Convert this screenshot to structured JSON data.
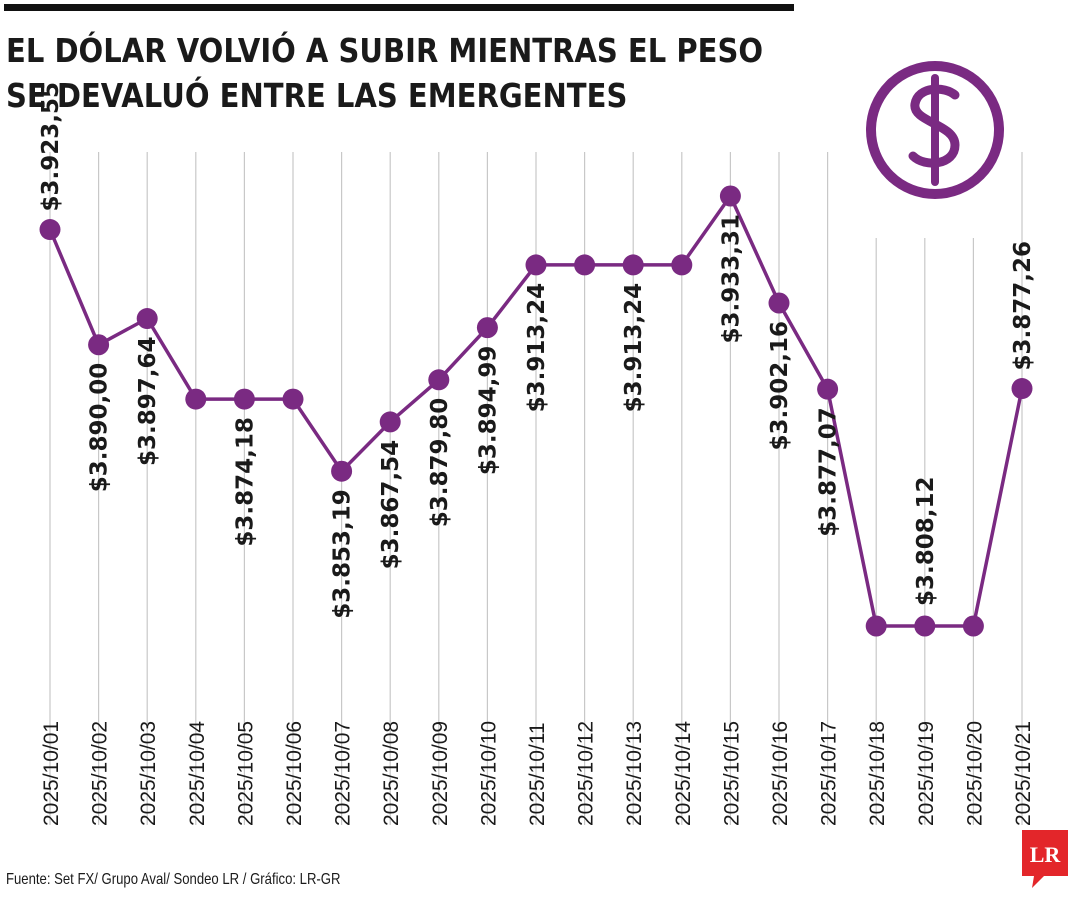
{
  "title_line1": "EL DÓLAR VOLVIÓ A SUBIR MIENTRAS EL PESO",
  "title_line2": "SE DEVALUÓ ENTRE LAS EMERGENTES",
  "source": "Fuente: Set FX/ Grupo Aval/ Sondeo LR / Gráfico: LR-GR",
  "logo_text": "LR",
  "icon": "dollar-sign-icon",
  "colors": {
    "series": "#7a2a82",
    "grid": "#c8c8c8",
    "text": "#1a1a1a",
    "logo": "#e3262a"
  },
  "chart_data": {
    "type": "line",
    "categories": [
      "2025/10/01",
      "2025/10/02",
      "2025/10/03",
      "2025/10/04",
      "2025/10/05",
      "2025/10/06",
      "2025/10/07",
      "2025/10/08",
      "2025/10/09",
      "2025/10/10",
      "2025/10/11",
      "2025/10/12",
      "2025/10/13",
      "2025/10/14",
      "2025/10/15",
      "2025/10/16",
      "2025/10/17",
      "2025/10/18",
      "2025/10/19",
      "2025/10/20",
      "2025/10/21"
    ],
    "values": [
      3923.55,
      3890.0,
      3897.64,
      3874.18,
      3874.18,
      3874.18,
      3853.19,
      3867.54,
      3879.8,
      3894.99,
      3913.24,
      3913.24,
      3913.24,
      3913.24,
      3933.31,
      3902.16,
      3877.07,
      3808.12,
      3808.12,
      3808.12,
      3877.26
    ],
    "labels": [
      "$3.923,55",
      "$3.890,00",
      "$3.897,64",
      "",
      "$3.874,18",
      "",
      "$3.853,19",
      "$3.867,54",
      "$3.879,80",
      "$3.894,99",
      "$3.913,24",
      "",
      "$3.913,24",
      "",
      "$3.933,31",
      "$3.902,16",
      "$3.877,07",
      "",
      "$3.808,12",
      "",
      "$3.877,26"
    ],
    "grid": true
  }
}
